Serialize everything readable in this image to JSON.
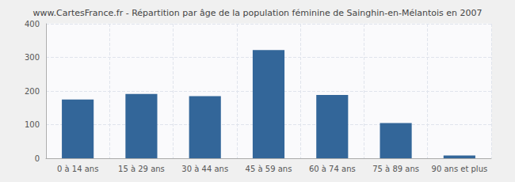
{
  "chart_data": {
    "type": "bar",
    "title": "www.CartesFrance.fr - Répartition par âge de la population féminine de Sainghin-en-Mélantois en 2007",
    "categories": [
      "0 à 14 ans",
      "15 à 29 ans",
      "30 à 44 ans",
      "45 à 59 ans",
      "60 à 74 ans",
      "75 à 89 ans",
      "90 ans et plus"
    ],
    "values": [
      175,
      191,
      185,
      322,
      188,
      105,
      8
    ],
    "color": "#336699",
    "ylim": [
      0,
      400
    ],
    "yticks": [
      0,
      100,
      200,
      300,
      400
    ],
    "grid": true
  }
}
